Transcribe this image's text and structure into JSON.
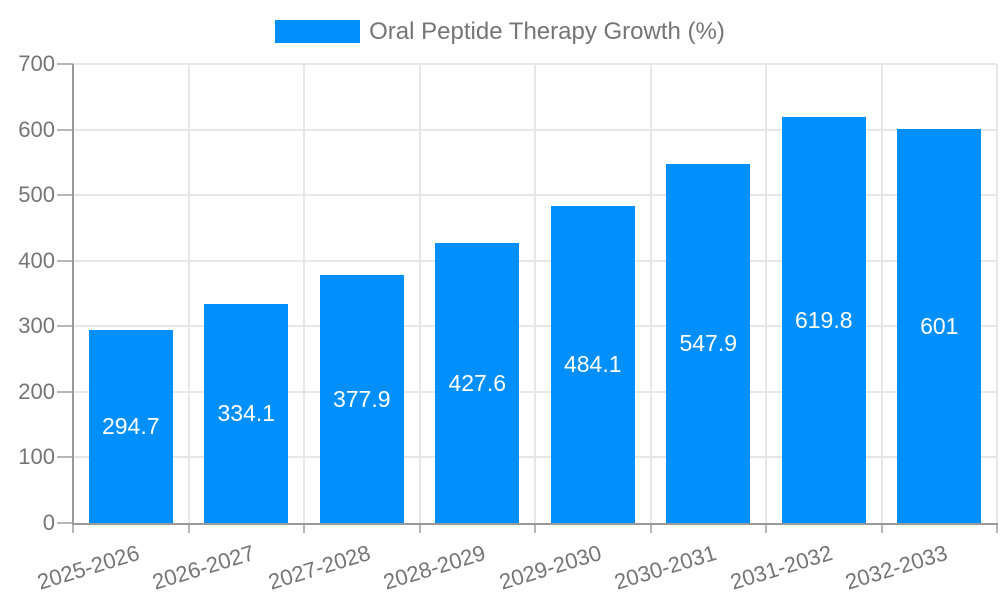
{
  "legend": {
    "label": "Oral Peptide Therapy Growth (%)"
  },
  "colors": {
    "bar": "#008FFB",
    "axis": "#999999",
    "grid": "#e7e7e7",
    "tick": "#b6b6b6",
    "tick_label": "#757575",
    "value_label": "#ffffff",
    "legend_text": "#757575",
    "background": "#ffffff"
  },
  "chart_data": {
    "type": "bar",
    "title": "Oral Peptide Therapy Growth (%)",
    "categories": [
      "2025-2026",
      "2026-2027",
      "2027-2028",
      "2028-2029",
      "2029-2030",
      "2030-2031",
      "2031-2032",
      "2032-2033"
    ],
    "series": [
      {
        "name": "Oral Peptide Therapy Growth (%)",
        "values": [
          294.7,
          334.1,
          377.9,
          427.6,
          484.1,
          547.9,
          619.8,
          601
        ]
      }
    ],
    "value_labels": [
      "294.7",
      "334.1",
      "377.9",
      "427.6",
      "484.1",
      "547.9",
      "619.8",
      "601"
    ],
    "xlabel": "",
    "ylabel": "",
    "ylim": [
      0,
      700
    ],
    "yticks": [
      0,
      100,
      200,
      300,
      400,
      500,
      600,
      700
    ],
    "grid": true,
    "legend_position": "top",
    "bar_label_position": "center-inside",
    "x_label_rotation_deg": -17
  }
}
